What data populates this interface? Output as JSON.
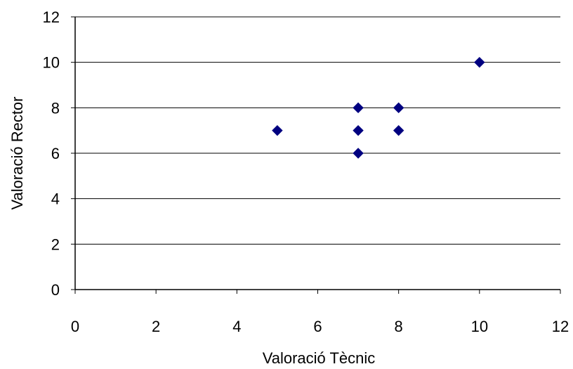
{
  "chart_data": {
    "type": "scatter",
    "xlabel": "Valoració Tècnic",
    "ylabel": "Valoració Rector",
    "xlim": [
      0,
      12
    ],
    "ylim": [
      0,
      12
    ],
    "xticks": [
      0,
      2,
      4,
      6,
      8,
      10,
      12
    ],
    "yticks": [
      0,
      2,
      4,
      6,
      8,
      10,
      12
    ],
    "grid": "horizontal",
    "marker": "diamond",
    "marker_color": "#000080",
    "series": [
      {
        "points": [
          {
            "x": 5,
            "y": 7
          },
          {
            "x": 7,
            "y": 8
          },
          {
            "x": 7,
            "y": 7
          },
          {
            "x": 7,
            "y": 6
          },
          {
            "x": 8,
            "y": 8
          },
          {
            "x": 8,
            "y": 7
          },
          {
            "x": 10,
            "y": 10
          }
        ]
      }
    ]
  }
}
